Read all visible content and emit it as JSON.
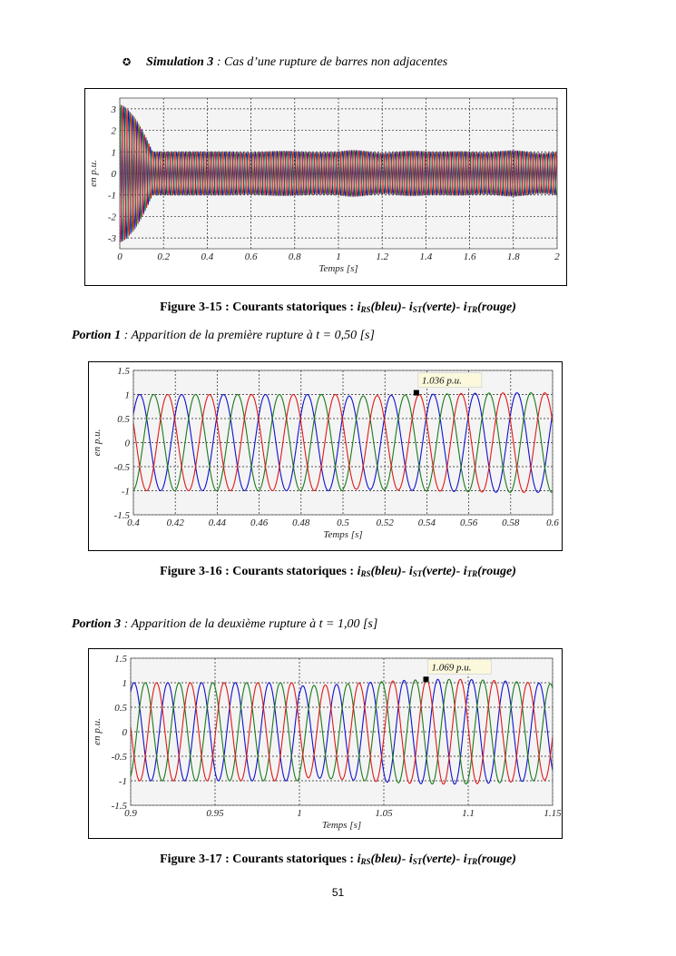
{
  "heading": {
    "bullet": "✪",
    "label": "Simulation 3",
    "sep": " : ",
    "text": "Cas d’une rupture de barres non adjacentes"
  },
  "captions": [
    {
      "prefix": "Figure 3-15 : Courants statoriques : ",
      "s1": "RS",
      "t1": "(bleu)- ",
      "s2": "ST",
      "t2": "(verte)- ",
      "s3": "TR",
      "t3": "(rouge)",
      "i": "i"
    },
    {
      "prefix": "Figure 3-16 : Courants statoriques : ",
      "s1": "RS",
      "t1": "(bleu)- ",
      "s2": "ST",
      "t2": "(verte)- ",
      "s3": "TR",
      "t3": "(rouge)",
      "i": "i"
    },
    {
      "prefix": "Figure 3-17 : Courants statoriques : ",
      "s1": "RS",
      "t1": "(bleu)- ",
      "s2": "ST",
      "t2": "(verte)- ",
      "s3": "TR",
      "t3": "(rouge)",
      "i": "i"
    }
  ],
  "portions": [
    {
      "label": "Portion 1",
      "sep": " : ",
      "text": "Apparition de la première rupture à t = 0,50 [s]"
    },
    {
      "label": "Portion 3",
      "sep": " : ",
      "text": "Apparition de la deuxième rupture à t = 1,00 [s]"
    }
  ],
  "page_number": "51",
  "chart_data": [
    {
      "type": "line",
      "title": "",
      "xlabel": "Temps [s]",
      "ylabel": "en p.u.",
      "xlim": [
        0,
        2
      ],
      "ylim": [
        -3.5,
        3.5
      ],
      "xticks": [
        0,
        0.2,
        0.4,
        0.6,
        0.8,
        1,
        1.2,
        1.4,
        1.6,
        1.8,
        2
      ],
      "xtick_labels": [
        "0",
        "0.2",
        "0.4",
        "0.6",
        "0.8",
        "1",
        "1.2",
        "1.4",
        "1.6",
        "1.8",
        "2"
      ],
      "yticks": [
        -3,
        -2,
        -1,
        0,
        1,
        2,
        3
      ],
      "ytick_labels": [
        "-3",
        "-2",
        "-1",
        "0",
        "1",
        "2",
        "3"
      ],
      "grid": true,
      "frequency_hz": 50,
      "startup_peak": 3.2,
      "startup_end_s": 0.15,
      "steady_amplitude": 1.0,
      "ruptures_s": [
        0.5,
        1.0
      ],
      "series": [
        {
          "name": "iRS (bleu)",
          "color": "#1010d0",
          "phase_deg": 0
        },
        {
          "name": "iST (verte)",
          "color": "#1a7a1a",
          "phase_deg": -120
        },
        {
          "name": "iTR (rouge)",
          "color": "#e01818",
          "phase_deg": -240
        }
      ]
    },
    {
      "type": "line",
      "xlabel": "Temps [s]",
      "ylabel": "en p.u.",
      "xlim": [
        0.4,
        0.6
      ],
      "ylim": [
        -1.5,
        1.5
      ],
      "xticks": [
        0.4,
        0.42,
        0.44,
        0.46,
        0.48,
        0.5,
        0.52,
        0.54,
        0.56,
        0.58,
        0.6
      ],
      "xtick_labels": [
        "0.4",
        "0.42",
        "0.44",
        "0.46",
        "0.48",
        "0.5",
        "0.52",
        "0.54",
        "0.56",
        "0.58",
        "0.6"
      ],
      "yticks": [
        -1.5,
        -1,
        -0.5,
        0,
        0.5,
        1,
        1.5
      ],
      "ytick_labels": [
        "-1.5",
        "-1",
        "-0.5",
        "0",
        "0.5",
        "1",
        "1.5"
      ],
      "grid": true,
      "frequency_hz": 50,
      "first_peak_s": 0.403,
      "rupture_s": 0.5,
      "post_rupture_ripple": 0.036,
      "annotation": {
        "x": 0.535,
        "y": 1.036,
        "label": "1.036 p.u."
      },
      "series": [
        {
          "name": "iRS (bleu)",
          "color": "#1010d0",
          "phase_deg": 0
        },
        {
          "name": "iST (verte)",
          "color": "#1a7a1a",
          "phase_deg": -120
        },
        {
          "name": "iTR (rouge)",
          "color": "#e01818",
          "phase_deg": -240
        }
      ]
    },
    {
      "type": "line",
      "xlabel": "Temps [s]",
      "ylabel": "en p.u.",
      "xlim": [
        0.9,
        1.15
      ],
      "ylim": [
        -1.5,
        1.5
      ],
      "xticks": [
        0.9,
        0.95,
        1,
        1.05,
        1.1,
        1.15
      ],
      "xtick_labels": [
        "0.9",
        "0.95",
        "1",
        "1.05",
        "1.1",
        "1.15"
      ],
      "yticks": [
        -1.5,
        -1,
        -0.5,
        0,
        0.5,
        1,
        1.5
      ],
      "ytick_labels": [
        "-1.5",
        "-1",
        "-0.5",
        "0",
        "0.5",
        "1",
        "1.5"
      ],
      "grid": true,
      "frequency_hz": 50,
      "first_peak_s": 0.902,
      "rupture_s": 1.0,
      "post_rupture_ripple": 0.069,
      "annotation": {
        "x": 1.075,
        "y": 1.069,
        "label": "1.069 p.u."
      },
      "series": [
        {
          "name": "iRS (bleu)",
          "color": "#1010d0",
          "phase_deg": 0
        },
        {
          "name": "iST (verte)",
          "color": "#1a7a1a",
          "phase_deg": -120
        },
        {
          "name": "iTR (rouge)",
          "color": "#e01818",
          "phase_deg": -240
        }
      ]
    }
  ]
}
